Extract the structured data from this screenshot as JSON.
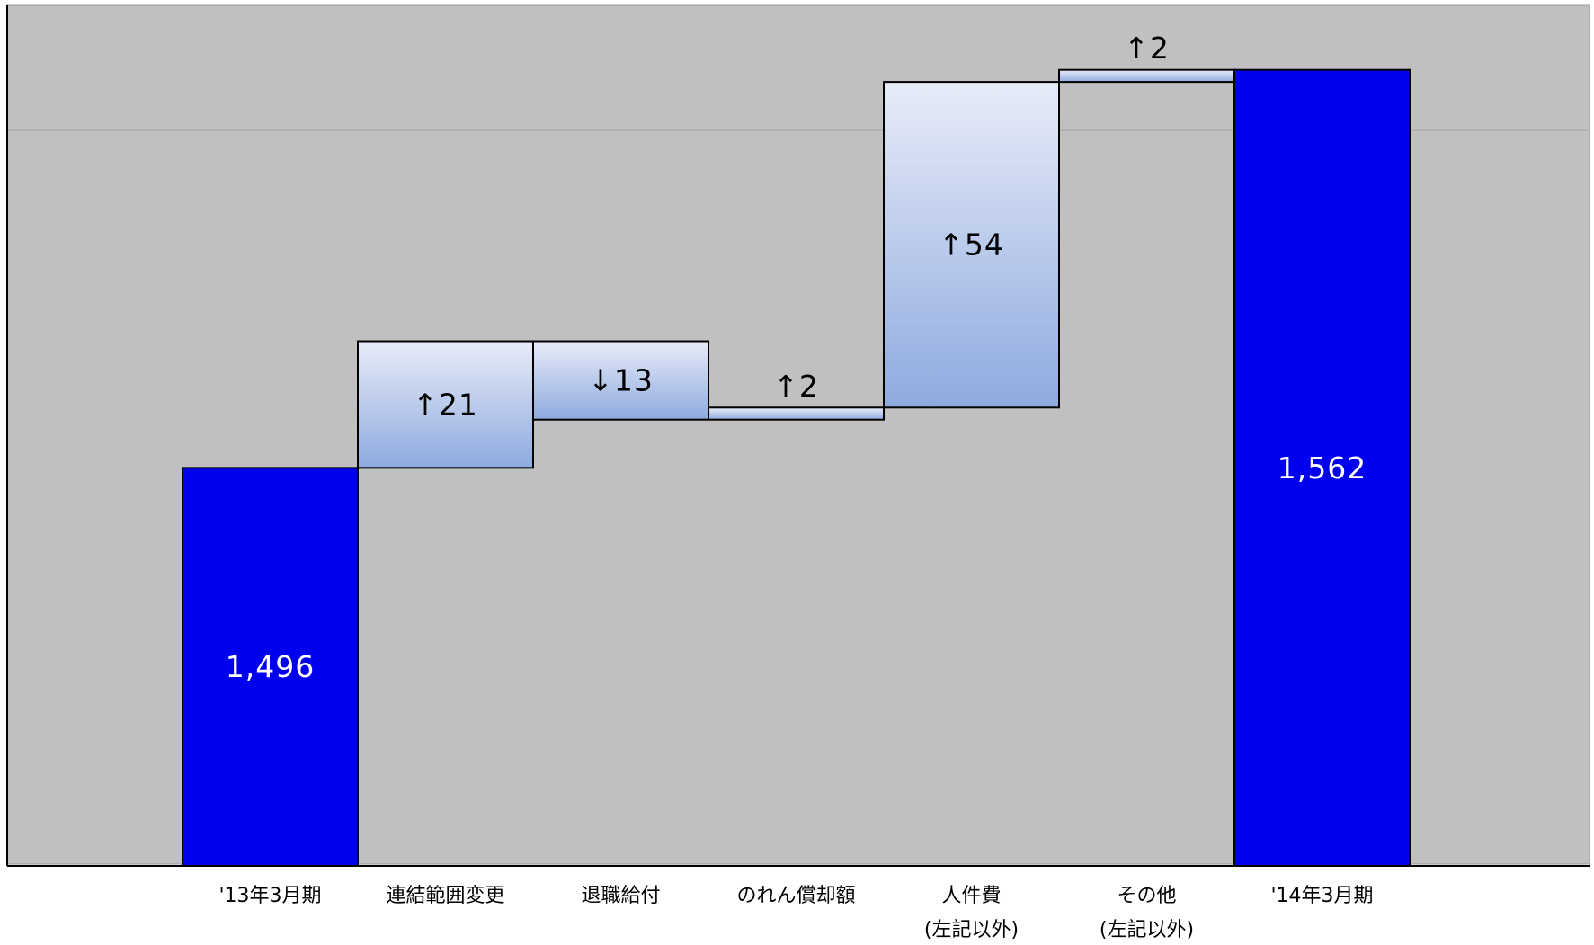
{
  "chart_data": {
    "type": "bar",
    "subtype": "waterfall",
    "categories": [
      [
        "'13年3月期"
      ],
      [
        "連結範囲変更"
      ],
      [
        "退職給付"
      ],
      [
        "のれん償却額"
      ],
      [
        "人件費",
        "(左記以外)"
      ],
      [
        "その他",
        "(左記以外)"
      ],
      [
        "'14年3月期"
      ]
    ],
    "bars": [
      {
        "kind": "total",
        "base": 0,
        "top": 1496,
        "label": "1,496"
      },
      {
        "kind": "increase",
        "base": 1496,
        "top": 1517,
        "label": "↑21"
      },
      {
        "kind": "decrease",
        "base": 1504,
        "top": 1517,
        "label": "↓13"
      },
      {
        "kind": "increase",
        "base": 1504,
        "top": 1506,
        "label": "↑2"
      },
      {
        "kind": "increase",
        "base": 1506,
        "top": 1560,
        "label": "↑54"
      },
      {
        "kind": "increase",
        "base": 1560,
        "top": 1562,
        "label": "↑2"
      },
      {
        "kind": "total",
        "base": 0,
        "top": 1562,
        "label": "1,562"
      }
    ],
    "axis_visual_range": [
      1430,
      1563
    ],
    "gridline_at": 1552,
    "colors": {
      "plot_bg": "#c0c0c0",
      "total_bar": "#0000ee",
      "delta_light": "#e8ecf8",
      "delta_dark": "#8eaadf",
      "total_label": "#ffffff",
      "delta_label": "#000000"
    }
  }
}
